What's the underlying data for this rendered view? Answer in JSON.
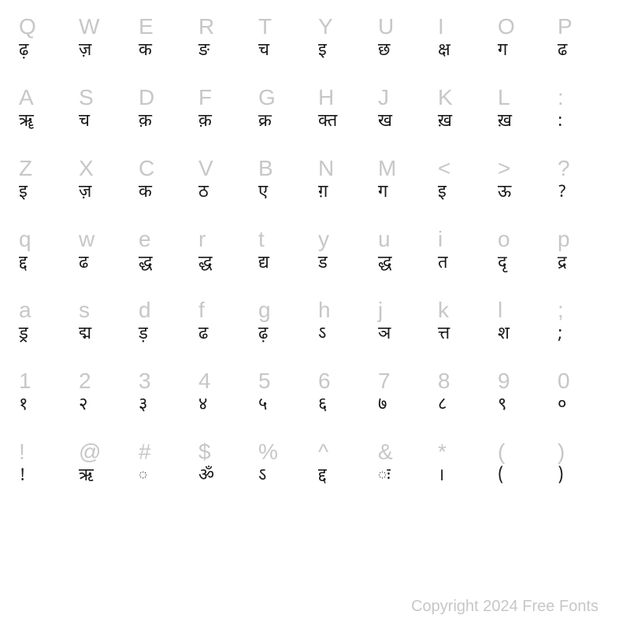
{
  "layout": {
    "columns": 10,
    "rows": 8,
    "background_color": "#ffffff",
    "key_color": "#c7c7c7",
    "glyph_color": "#1a1a1a",
    "key_fontsize": 28,
    "glyph_fontsize": 22,
    "footer_color": "#c7c7c7",
    "footer_fontsize": 20
  },
  "rows": [
    {
      "keys": [
        "Q",
        "W",
        "E",
        "R",
        "T",
        "Y",
        "U",
        "I",
        "O",
        "P"
      ],
      "glyphs": [
        "ढ़",
        "ज़",
        "क",
        "ङ",
        "च",
        "इ",
        "छ",
        "क्ष",
        "ग",
        "ढ"
      ]
    },
    {
      "keys": [
        "A",
        "S",
        "D",
        "F",
        "G",
        "H",
        "J",
        "K",
        "L",
        ":"
      ],
      "glyphs": [
        "ॠ",
        "च",
        "क़",
        "क़",
        "क्र",
        "क्त",
        "ख",
        "ख़",
        "ख़",
        ":"
      ]
    },
    {
      "keys": [
        "Z",
        "X",
        "C",
        "V",
        "B",
        "N",
        "M",
        "<",
        ">",
        "?"
      ],
      "glyphs": [
        "इ",
        "ज़",
        "क",
        "ठ",
        "ए",
        "ग़",
        "ग",
        "इ",
        "ऊ",
        "?"
      ]
    },
    {
      "keys": [
        "q",
        "w",
        "e",
        "r",
        "t",
        "y",
        "u",
        "i",
        "o",
        "p"
      ],
      "glyphs": [
        "द्द",
        "ढ",
        "द्ध",
        "द्ध",
        "द्य",
        "ड",
        "द्ध",
        "त",
        "दृ",
        "द्र"
      ]
    },
    {
      "keys": [
        "a",
        "s",
        "d",
        "f",
        "g",
        "h",
        "j",
        "k",
        "l",
        ";"
      ],
      "glyphs": [
        "ड्र",
        "द्म",
        "ड़",
        "ढ",
        "ढ़",
        "ऽ",
        "ञ",
        "त्त",
        "श",
        ";"
      ]
    },
    {
      "keys": [
        "1",
        "2",
        "3",
        "4",
        "5",
        "6",
        "7",
        "8",
        "9",
        "0"
      ],
      "glyphs": [
        "१",
        "२",
        "३",
        "४",
        "५",
        "६",
        "७",
        "८",
        "९",
        "०"
      ]
    },
    {
      "keys": [
        "!",
        "@",
        "#",
        "$",
        "%",
        "^",
        "&",
        "*",
        "(",
        ")"
      ],
      "glyphs": [
        "!",
        "ऋ",
        "◌",
        "ॐ",
        "ऽ",
        "द्द",
        "ः",
        "।",
        "(",
        ")"
      ]
    }
  ],
  "footer": "Copyright 2024 Free Fonts"
}
